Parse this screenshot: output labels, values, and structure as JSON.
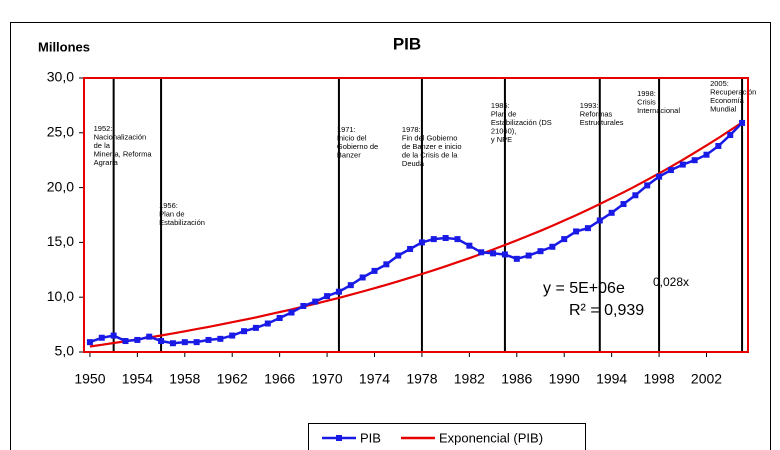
{
  "chart_data": {
    "type": "line",
    "title": "PIB",
    "ylabel": "Millones",
    "x": [
      1950,
      1951,
      1952,
      1953,
      1954,
      1955,
      1956,
      1957,
      1958,
      1959,
      1960,
      1961,
      1962,
      1963,
      1964,
      1965,
      1966,
      1967,
      1968,
      1969,
      1970,
      1971,
      1972,
      1973,
      1974,
      1975,
      1976,
      1977,
      1978,
      1979,
      1980,
      1981,
      1982,
      1983,
      1984,
      1985,
      1986,
      1987,
      1988,
      1989,
      1990,
      1991,
      1992,
      1993,
      1994,
      1995,
      1996,
      1997,
      1998,
      1999,
      2000,
      2001,
      2002,
      2003,
      2004,
      2005
    ],
    "series": [
      {
        "name": "PIB",
        "color": "#1a1ae6",
        "marker": "square",
        "values": [
          5.9,
          6.3,
          6.5,
          6.0,
          6.1,
          6.4,
          6.0,
          5.8,
          5.9,
          5.9,
          6.1,
          6.2,
          6.5,
          6.9,
          7.2,
          7.6,
          8.1,
          8.6,
          9.2,
          9.6,
          10.1,
          10.5,
          11.1,
          11.8,
          12.4,
          13.0,
          13.8,
          14.4,
          15.0,
          15.3,
          15.4,
          15.3,
          14.7,
          14.1,
          14.0,
          13.9,
          13.5,
          13.8,
          14.2,
          14.6,
          15.3,
          16.0,
          16.3,
          17.0,
          17.7,
          18.5,
          19.3,
          20.2,
          21.0,
          21.6,
          22.1,
          22.5,
          23.0,
          23.8,
          24.8,
          25.9
        ]
      },
      {
        "name": "Exponencial (PIB)",
        "color": "#e60000",
        "marker": "none",
        "values": [
          5.5,
          5.66,
          5.82,
          5.98,
          6.16,
          6.33,
          6.51,
          6.7,
          6.89,
          7.09,
          7.29,
          7.5,
          7.72,
          7.94,
          8.16,
          8.4,
          8.64,
          8.88,
          9.14,
          9.4,
          9.67,
          9.94,
          10.23,
          10.52,
          10.82,
          11.13,
          11.45,
          11.78,
          12.12,
          12.46,
          12.82,
          13.19,
          13.56,
          13.95,
          14.35,
          14.76,
          15.18,
          15.62,
          16.06,
          16.52,
          17.0,
          17.48,
          17.98,
          18.5,
          19.03,
          19.57,
          20.13,
          20.71,
          21.3,
          21.91,
          22.54,
          23.18,
          23.85,
          24.53,
          25.23,
          25.95
        ]
      }
    ],
    "xlim": [
      1949.5,
      2005.5
    ],
    "xticks": [
      1950,
      1954,
      1958,
      1962,
      1966,
      1970,
      1974,
      1978,
      1982,
      1986,
      1990,
      1994,
      1998,
      2002
    ],
    "ylim": [
      5,
      30
    ],
    "yticks": [
      {
        "value": 5,
        "label": "5,0"
      },
      {
        "value": 10,
        "label": "10,0"
      },
      {
        "value": 15,
        "label": "15,0"
      },
      {
        "value": 20,
        "label": "20,0"
      },
      {
        "value": 25,
        "label": "25,0"
      },
      {
        "value": 30,
        "label": "30,0"
      }
    ],
    "grid": false,
    "legend": "bottom",
    "trendline": {
      "equation": "y = 5E+06e",
      "exponent": "0,028x",
      "r2": "R² = 0,939"
    },
    "annotations": [
      {
        "year": 1952,
        "lines": [
          "1952:",
          "Nacionalización",
          "de la",
          "Minería, Reforma",
          "Agraria"
        ]
      },
      {
        "year": 1956,
        "lines": [
          "1956:",
          "Plan de",
          "Estabilización"
        ]
      },
      {
        "year": 1971,
        "lines": [
          "1971:",
          "Inicio del",
          "Gobierno de",
          "Banzer"
        ]
      },
      {
        "year": 1978,
        "lines": [
          "1978:",
          "Fin del Gobierno",
          "de Banzer e inicio",
          "de la Crisis de la",
          "Deuda"
        ]
      },
      {
        "year": 1985,
        "lines": [
          "1985:",
          "Plan de",
          "Estabilización (DS",
          "21060),",
          "y NPE"
        ]
      },
      {
        "year": 1993,
        "lines": [
          "1993:",
          "Reformas",
          "Estructurales"
        ]
      },
      {
        "year": 1998,
        "lines": [
          "1998:",
          "Crisis",
          "Internacional"
        ]
      },
      {
        "year": 2005,
        "lines": [
          "2005:",
          "Recuperación",
          "Economía",
          "Mundial"
        ]
      }
    ]
  }
}
